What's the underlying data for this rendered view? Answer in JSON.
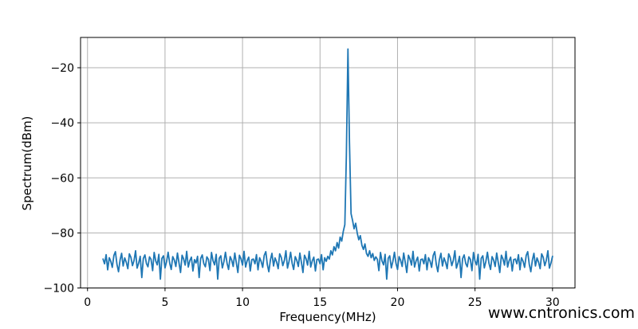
{
  "figure": {
    "background": "#ffffff"
  },
  "watermark": {
    "text": "www.cntronics.com",
    "color": "#b2dfb2"
  },
  "chart_data": {
    "type": "line",
    "title": "",
    "xlabel": "Frequency(MHz)",
    "ylabel": "Spectrum(dBm)",
    "xlim": [
      -0.45,
      31.45
    ],
    "ylim": [
      -100,
      -9
    ],
    "grid": true,
    "grid_color": "#b0b0b0",
    "spine_color": "#000000",
    "line_color": "#1f77b4",
    "legend": "none",
    "xticks": {
      "values": [
        0,
        5,
        10,
        15,
        20,
        25,
        30
      ],
      "labels": [
        "0",
        "5",
        "10",
        "15",
        "20",
        "25",
        "30"
      ]
    },
    "yticks": {
      "values": [
        -100,
        -80,
        -60,
        -40,
        -20
      ],
      "labels": [
        "−100",
        "−80",
        "−60",
        "−40",
        "−20"
      ]
    },
    "peak": {
      "frequency_mhz": 16.8,
      "level_dbm": -13.2
    },
    "noise_floor_dbm": -90,
    "series": [
      {
        "name": "spectrum",
        "x_start": 1.0,
        "x_step": 0.1,
        "values": [
          -89.5,
          -91.2,
          -87.9,
          -93.4,
          -89.0,
          -90.3,
          -92.5,
          -88.2,
          -86.8,
          -91.5,
          -94.1,
          -89.8,
          -87.4,
          -92.0,
          -89.1,
          -90.6,
          -93.0,
          -87.6,
          -88.9,
          -91.9,
          -90.0,
          -86.5,
          -92.8,
          -90.9,
          -88.5,
          -96.2,
          -89.3,
          -88.0,
          -91.1,
          -92.3,
          -88.7,
          -89.6,
          -93.7,
          -87.1,
          -90.2,
          -91.6,
          -87.8,
          -96.8,
          -89.2,
          -88.3,
          -92.7,
          -90.4,
          -87.0,
          -91.0,
          -93.3,
          -88.6,
          -89.9,
          -92.2,
          -87.3,
          -90.8,
          -94.4,
          -88.1,
          -89.4,
          -91.7,
          -86.7,
          -92.4,
          -90.1,
          -88.8,
          -93.8,
          -89.7,
          -90.9,
          -88.5,
          -96.2,
          -89.3,
          -88.0,
          -91.1,
          -92.3,
          -88.7,
          -89.6,
          -93.7,
          -87.1,
          -90.2,
          -91.6,
          -87.8,
          -96.8,
          -89.2,
          -88.3,
          -92.7,
          -90.4,
          -87.0,
          -91.0,
          -93.3,
          -88.6,
          -89.9,
          -92.2,
          -87.3,
          -90.8,
          -94.4,
          -88.1,
          -89.4,
          -91.7,
          -86.7,
          -92.4,
          -90.1,
          -88.8,
          -93.8,
          -89.7,
          -89.5,
          -91.2,
          -87.9,
          -93.4,
          -89.0,
          -90.3,
          -92.5,
          -88.2,
          -86.8,
          -91.5,
          -94.1,
          -89.8,
          -87.4,
          -92.0,
          -89.1,
          -90.6,
          -93.0,
          -87.6,
          -88.9,
          -91.9,
          -90.0,
          -86.5,
          -92.8,
          -90.4,
          -87.0,
          -91.0,
          -93.3,
          -88.6,
          -89.9,
          -92.2,
          -87.3,
          -90.8,
          -94.4,
          -88.1,
          -89.4,
          -91.7,
          -86.7,
          -92.4,
          -90.1,
          -88.8,
          -93.8,
          -89.7,
          -89.5,
          -91.2,
          -87.9,
          -93.4,
          -89.0,
          -90.3,
          -88.5,
          -89.5,
          -86.5,
          -88.0,
          -85.0,
          -86.5,
          -83.5,
          -85.5,
          -81.5,
          -83.0,
          -79.5,
          -77.0,
          -52.0,
          -13.2,
          -47.0,
          -73.0,
          -75.5,
          -78.5,
          -76.5,
          -80.0,
          -82.5,
          -81.0,
          -84.5,
          -86.0,
          -84.0,
          -87.5,
          -88.5,
          -86.5,
          -89.0,
          -87.5,
          -90.0,
          -88.7,
          -89.6,
          -93.7,
          -87.1,
          -90.2,
          -91.6,
          -87.8,
          -96.8,
          -89.2,
          -88.3,
          -92.7,
          -90.4,
          -87.0,
          -91.0,
          -93.3,
          -88.6,
          -89.9,
          -92.2,
          -87.3,
          -90.8,
          -94.4,
          -88.1,
          -89.4,
          -91.7,
          -86.7,
          -92.4,
          -90.1,
          -88.8,
          -93.8,
          -89.7,
          -89.5,
          -91.2,
          -87.9,
          -93.4,
          -89.0,
          -90.3,
          -92.5,
          -88.2,
          -86.8,
          -91.5,
          -94.1,
          -89.8,
          -87.4,
          -92.0,
          -89.1,
          -90.6,
          -93.0,
          -87.6,
          -88.9,
          -91.9,
          -90.0,
          -86.5,
          -92.8,
          -90.9,
          -88.5,
          -96.2,
          -89.3,
          -88.0,
          -91.1,
          -92.3,
          -88.7,
          -89.6,
          -93.7,
          -87.1,
          -90.2,
          -91.6,
          -87.8,
          -96.8,
          -89.2,
          -88.3,
          -92.7,
          -90.4,
          -87.0,
          -91.0,
          -93.3,
          -88.6,
          -89.9,
          -92.2,
          -87.3,
          -90.8,
          -94.4,
          -88.1,
          -89.4,
          -91.7,
          -86.7,
          -92.4,
          -90.1,
          -88.8,
          -93.8,
          -89.7,
          -89.5,
          -91.2,
          -87.9,
          -93.4,
          -89.0,
          -90.3,
          -92.5,
          -88.2,
          -86.8,
          -91.5,
          -94.1,
          -89.8,
          -87.4,
          -92.0,
          -89.1,
          -90.6,
          -93.0,
          -87.6,
          -88.9,
          -91.9,
          -90.0,
          -86.5,
          -92.8,
          -90.9,
          -88.5
        ]
      }
    ]
  }
}
